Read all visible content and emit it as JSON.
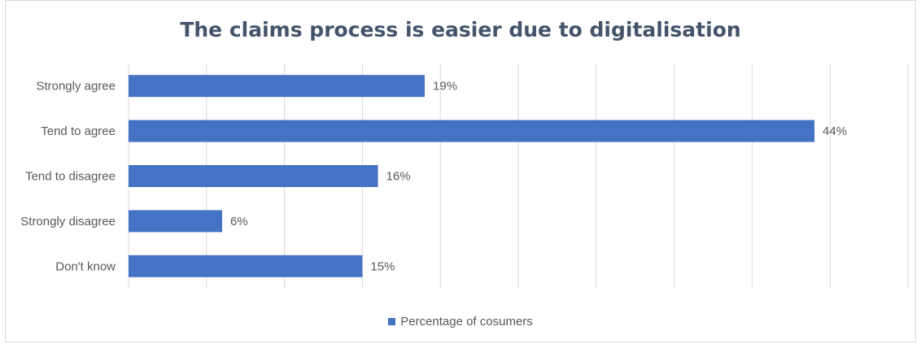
{
  "chart_data": {
    "type": "bar",
    "orientation": "horizontal",
    "title": "The claims process is easier due to digitalisation",
    "categories": [
      "Strongly agree",
      "Tend to agree",
      "Tend to disagree",
      "Strongly disagree",
      "Don't know"
    ],
    "series": [
      {
        "name": "Percentage of cosumers",
        "values": [
          19,
          44,
          16,
          6,
          15
        ],
        "value_labels": [
          "19%",
          "44%",
          "16%",
          "6%",
          "15%"
        ],
        "color": "#4472c4"
      }
    ],
    "xlim": [
      0,
      50
    ],
    "x_unit": "%",
    "grid": "vertical",
    "legend": "bottom-center"
  }
}
